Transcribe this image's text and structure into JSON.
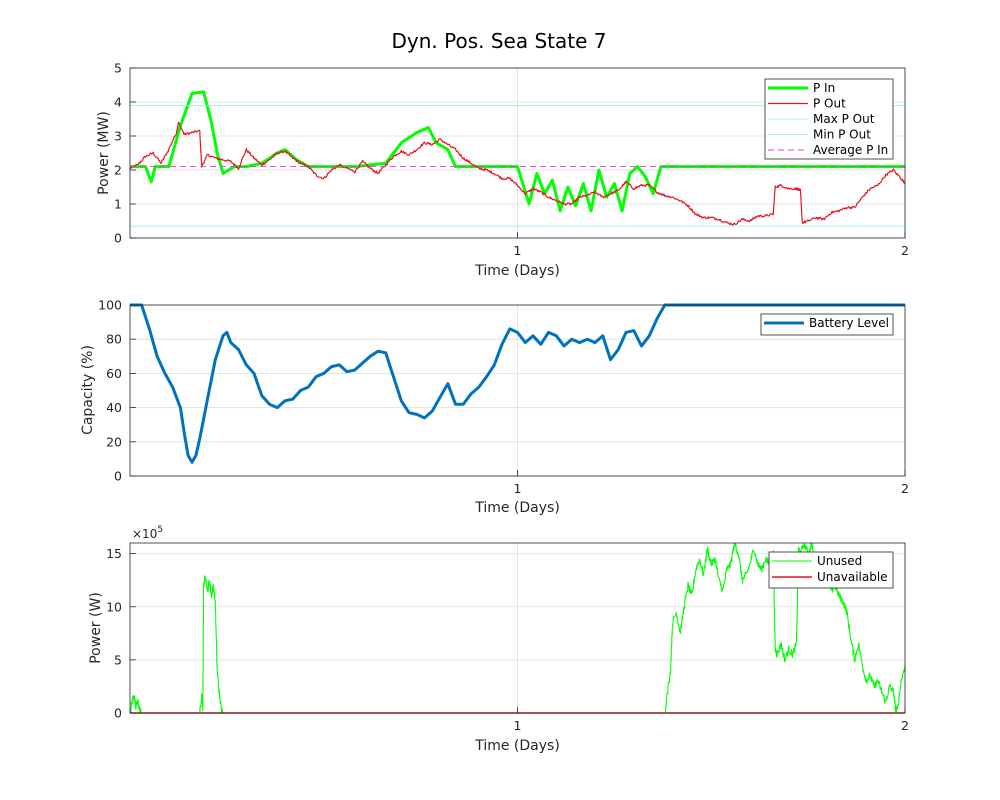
{
  "figure": {
    "title": "Dyn. Pos. Sea State 7"
  },
  "chart_data": [
    {
      "type": "line",
      "title": "Dyn. Pos. Sea State 7",
      "xlabel": "Time (Days)",
      "ylabel": "Power (MW)",
      "xlim": [
        0,
        2
      ],
      "ylim": [
        0,
        5
      ],
      "xticks": [
        1,
        2
      ],
      "yticks": [
        0,
        1,
        2,
        3,
        4,
        5
      ],
      "grid": true,
      "legend_position": "top-right",
      "series": [
        {
          "name": "P In",
          "color": "#00ff00",
          "x": [
            0,
            0.04,
            0.055,
            0.065,
            0.1,
            0.13,
            0.16,
            0.19,
            0.21,
            0.225,
            0.24,
            0.27,
            0.3,
            0.34,
            0.38,
            0.4,
            0.43,
            0.46,
            0.5,
            0.58,
            0.66,
            0.7,
            0.74,
            0.77,
            0.79,
            0.82,
            0.84,
            0.88,
            0.9,
            0.95,
            1.0,
            1.03,
            1.05,
            1.07,
            1.09,
            1.11,
            1.13,
            1.15,
            1.17,
            1.19,
            1.21,
            1.23,
            1.25,
            1.27,
            1.29,
            1.31,
            1.33,
            1.35,
            1.37,
            1.39,
            1.41,
            1.5,
            1.6,
            1.7,
            1.8,
            1.9,
            2.0
          ],
          "y": [
            2.1,
            2.1,
            1.65,
            2.1,
            2.1,
            3.3,
            4.25,
            4.3,
            3.4,
            2.5,
            1.9,
            2.1,
            2.1,
            2.2,
            2.5,
            2.6,
            2.3,
            2.1,
            2.1,
            2.1,
            2.2,
            2.8,
            3.1,
            3.25,
            2.8,
            2.6,
            2.1,
            2.1,
            2.1,
            2.1,
            2.1,
            1.0,
            1.9,
            1.3,
            1.7,
            0.8,
            1.5,
            0.95,
            1.6,
            0.8,
            2.0,
            1.2,
            1.6,
            0.8,
            1.9,
            2.1,
            1.8,
            1.3,
            2.1,
            2.1,
            2.1,
            2.1,
            2.1,
            2.1,
            2.1,
            2.1,
            2.1
          ]
        },
        {
          "name": "P Out",
          "color": "#e8141c",
          "x": [
            0,
            0.02,
            0.04,
            0.06,
            0.08,
            0.1,
            0.12,
            0.125,
            0.14,
            0.16,
            0.18,
            0.185,
            0.2,
            0.22,
            0.24,
            0.26,
            0.28,
            0.3,
            0.32,
            0.34,
            0.36,
            0.38,
            0.4,
            0.42,
            0.44,
            0.46,
            0.48,
            0.5,
            0.52,
            0.54,
            0.56,
            0.58,
            0.6,
            0.62,
            0.64,
            0.66,
            0.68,
            0.7,
            0.72,
            0.74,
            0.76,
            0.78,
            0.8,
            0.82,
            0.84,
            0.86,
            0.88,
            0.9,
            0.92,
            0.94,
            0.96,
            0.98,
            1.0,
            1.02,
            1.04,
            1.06,
            1.08,
            1.1,
            1.12,
            1.14,
            1.16,
            1.18,
            1.2,
            1.22,
            1.24,
            1.26,
            1.28,
            1.3,
            1.32,
            1.34,
            1.36,
            1.38,
            1.4,
            1.42,
            1.44,
            1.46,
            1.48,
            1.5,
            1.52,
            1.54,
            1.56,
            1.58,
            1.6,
            1.62,
            1.64,
            1.66,
            1.665,
            1.68,
            1.7,
            1.72,
            1.73,
            1.735,
            1.75,
            1.77,
            1.79,
            1.81,
            1.83,
            1.85,
            1.87,
            1.89,
            1.91,
            1.93,
            1.95,
            1.97,
            1.99,
            2.0
          ],
          "y": [
            2.05,
            2.15,
            2.4,
            2.5,
            2.2,
            2.6,
            3.1,
            3.4,
            3.05,
            3.1,
            3.15,
            2.1,
            2.45,
            2.35,
            2.3,
            2.25,
            2.05,
            2.6,
            2.35,
            2.15,
            2.3,
            2.5,
            2.55,
            2.35,
            2.2,
            2.1,
            1.85,
            1.75,
            2.0,
            2.15,
            2.05,
            1.95,
            2.25,
            2.05,
            1.9,
            2.15,
            2.4,
            2.55,
            2.45,
            2.6,
            2.8,
            2.75,
            2.9,
            2.75,
            2.6,
            2.35,
            2.2,
            2.05,
            2.0,
            1.9,
            1.75,
            1.75,
            1.55,
            1.3,
            1.45,
            1.35,
            1.2,
            1.1,
            1.0,
            1.0,
            1.2,
            1.25,
            1.35,
            1.2,
            1.3,
            1.4,
            1.65,
            1.45,
            1.55,
            1.55,
            1.35,
            1.25,
            1.2,
            1.1,
            0.95,
            0.7,
            0.6,
            0.6,
            0.55,
            0.45,
            0.4,
            0.55,
            0.5,
            0.65,
            0.65,
            0.7,
            1.5,
            1.55,
            1.45,
            1.45,
            1.4,
            0.45,
            0.5,
            0.6,
            0.55,
            0.75,
            0.8,
            0.9,
            0.9,
            1.2,
            1.45,
            1.55,
            1.85,
            2.0,
            1.75,
            1.6
          ]
        },
        {
          "name": "Max P Out",
          "color": "#7ff0f0",
          "x": [
            0,
            2
          ],
          "y": [
            3.9,
            3.9
          ]
        },
        {
          "name": "Min P Out",
          "color": "#7ff0f0",
          "x": [
            0,
            2
          ],
          "y": [
            0.35,
            0.35
          ]
        },
        {
          "name": "Average P In",
          "color": "#ee33ee",
          "x": [
            0,
            2
          ],
          "y": [
            2.1,
            2.1
          ]
        }
      ]
    },
    {
      "type": "line",
      "xlabel": "Time (Days)",
      "ylabel": "Capacity (%)",
      "xlim": [
        0,
        2
      ],
      "ylim": [
        0,
        100
      ],
      "xticks": [
        1,
        2
      ],
      "yticks": [
        0,
        20,
        40,
        60,
        80,
        100
      ],
      "grid": true,
      "legend_position": "top-right",
      "series": [
        {
          "name": "Battery Level",
          "color": "#0072bd",
          "x": [
            0,
            0.03,
            0.05,
            0.07,
            0.09,
            0.11,
            0.12,
            0.13,
            0.14,
            0.15,
            0.16,
            0.17,
            0.18,
            0.2,
            0.22,
            0.24,
            0.25,
            0.26,
            0.28,
            0.3,
            0.32,
            0.34,
            0.36,
            0.38,
            0.4,
            0.42,
            0.44,
            0.46,
            0.48,
            0.5,
            0.52,
            0.54,
            0.56,
            0.58,
            0.6,
            0.62,
            0.64,
            0.66,
            0.68,
            0.7,
            0.72,
            0.74,
            0.76,
            0.78,
            0.8,
            0.82,
            0.84,
            0.86,
            0.88,
            0.9,
            0.92,
            0.94,
            0.96,
            0.98,
            1.0,
            1.02,
            1.04,
            1.06,
            1.08,
            1.1,
            1.12,
            1.14,
            1.16,
            1.18,
            1.2,
            1.22,
            1.24,
            1.26,
            1.28,
            1.3,
            1.32,
            1.34,
            1.36,
            1.38,
            1.4,
            1.45,
            1.5,
            1.6,
            1.7,
            1.8,
            1.9,
            2.0
          ],
          "y": [
            100,
            100,
            86,
            70,
            60,
            52,
            46,
            40,
            25,
            12,
            8,
            12,
            22,
            45,
            68,
            82,
            84,
            78,
            74,
            65,
            60,
            47,
            42,
            40,
            44,
            45,
            50,
            52,
            58,
            60,
            64,
            65,
            61,
            62,
            66,
            70,
            73,
            72,
            58,
            44,
            37,
            36,
            34,
            38,
            46,
            54,
            42,
            42,
            48,
            52,
            58,
            65,
            77,
            86,
            84,
            78,
            82,
            77,
            84,
            82,
            76,
            80,
            78,
            80,
            78,
            82,
            68,
            74,
            84,
            85,
            76,
            82,
            92,
            100,
            100,
            100,
            100,
            100,
            100,
            100,
            100,
            100
          ]
        }
      ]
    },
    {
      "type": "line",
      "xlabel": "Time (Days)",
      "ylabel": "Power (W)",
      "exponent_label": "×10^5",
      "xlim": [
        0,
        2
      ],
      "ylim": [
        0,
        16
      ],
      "xticks": [
        1,
        2
      ],
      "yticks": [
        0,
        5,
        10,
        15
      ],
      "ytick_labels": [
        "0",
        "5",
        "10",
        "15"
      ],
      "grid": true,
      "legend_position": "top-right",
      "series": [
        {
          "name": "Unused",
          "color": "#00ff00",
          "x": [
            0,
            0.005,
            0.01,
            0.015,
            0.02,
            0.025,
            0.03,
            0.04,
            0.18,
            0.185,
            0.188,
            0.19,
            0.195,
            0.2,
            0.205,
            0.21,
            0.215,
            0.22,
            0.225,
            0.23,
            0.235,
            0.24,
            0.25,
            1.38,
            1.395,
            1.4,
            1.41,
            1.42,
            1.43,
            1.44,
            1.45,
            1.46,
            1.47,
            1.48,
            1.49,
            1.5,
            1.51,
            1.52,
            1.53,
            1.54,
            1.55,
            1.56,
            1.57,
            1.58,
            1.59,
            1.6,
            1.61,
            1.62,
            1.63,
            1.64,
            1.65,
            1.66,
            1.665,
            1.67,
            1.68,
            1.69,
            1.7,
            1.71,
            1.72,
            1.725,
            1.73,
            1.74,
            1.75,
            1.76,
            1.77,
            1.78,
            1.79,
            1.8,
            1.81,
            1.82,
            1.83,
            1.84,
            1.85,
            1.86,
            1.87,
            1.88,
            1.89,
            1.9,
            1.91,
            1.92,
            1.93,
            1.94,
            1.95,
            1.96,
            1.97,
            1.975,
            1.98,
            1.99,
            2.0
          ],
          "y": [
            0,
            1.0,
            1.8,
            0.5,
            1.2,
            0.3,
            0,
            0,
            0,
            1.5,
            0.5,
            12.0,
            13.0,
            11.5,
            12.5,
            11.0,
            12.0,
            10.5,
            4.0,
            2.0,
            0.5,
            0,
            0,
            0,
            4.0,
            8.5,
            9.5,
            7.5,
            10.0,
            12.0,
            11.0,
            13.5,
            14.5,
            13.0,
            15.5,
            14.0,
            14.5,
            12.5,
            11.5,
            13.5,
            14.0,
            16.0,
            15.0,
            12.5,
            13.0,
            14.0,
            15.5,
            14.0,
            13.5,
            14.5,
            14.0,
            15.0,
            6.0,
            5.5,
            6.5,
            5.0,
            6.0,
            5.5,
            6.5,
            15.5,
            15.0,
            16.0,
            15.0,
            16.0,
            13.0,
            14.0,
            15.0,
            13.5,
            11.5,
            12.0,
            11.0,
            10.5,
            9.5,
            7.0,
            5.0,
            6.5,
            4.5,
            3.0,
            3.5,
            2.5,
            3.0,
            2.0,
            1.0,
            2.5,
            2.0,
            0.5,
            0.2,
            3.0,
            4.5
          ]
        },
        {
          "name": "Unavailable",
          "color": "#e8141c",
          "x": [
            0,
            2
          ],
          "y": [
            0,
            0
          ]
        }
      ]
    }
  ]
}
